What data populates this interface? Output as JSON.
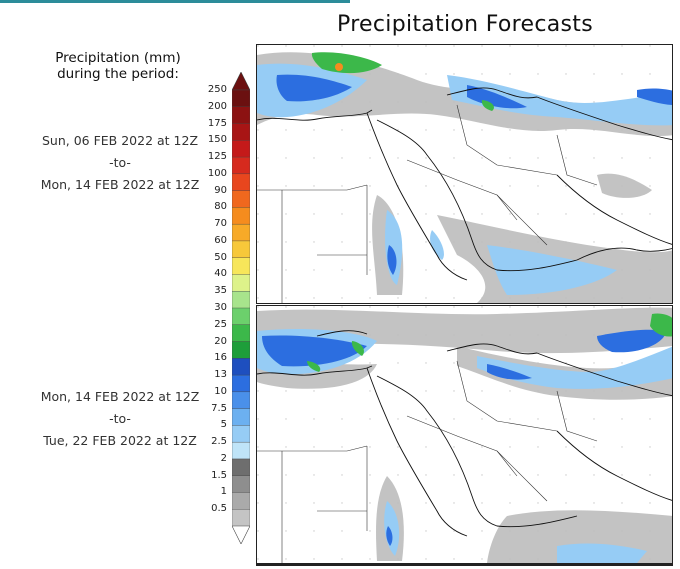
{
  "title": "Precipitation Forecasts",
  "legend": {
    "title_line1": "Precipitation (mm)",
    "title_line2": "during the period:",
    "ticks": [
      "250",
      "200",
      "175",
      "150",
      "125",
      "100",
      "90",
      "80",
      "70",
      "60",
      "50",
      "40",
      "35",
      "30",
      "25",
      "20",
      "16",
      "13",
      "10",
      "7.5",
      "5",
      "2.5",
      "2",
      "1.5",
      "1",
      "0.5"
    ],
    "colors": [
      "#6b1010",
      "#8c1212",
      "#a81515",
      "#c41a1a",
      "#d62a1e",
      "#e8461e",
      "#f0681e",
      "#f58c1e",
      "#f7aa28",
      "#f7c83a",
      "#f7e65a",
      "#ddf28a",
      "#a8e48c",
      "#6cd06c",
      "#3cb84a",
      "#1e9e3a",
      "#1e4fbf",
      "#2c6ee0",
      "#4a90ea",
      "#6cb0f0",
      "#96ccf5",
      "#bfe4f8",
      "#6e6e6e",
      "#8e8e8e",
      "#aaaaaa",
      "#c4c4c4"
    ]
  },
  "periods": [
    {
      "start": "Sun, 06 FEB 2022 at 12Z",
      "sep": "-to-",
      "end": "Mon, 14 FEB 2022 at 12Z"
    },
    {
      "start": "Mon, 14 FEB 2022 at 12Z",
      "sep": "-to-",
      "end": "Tue, 22 FEB 2022 at 12Z"
    }
  ]
}
